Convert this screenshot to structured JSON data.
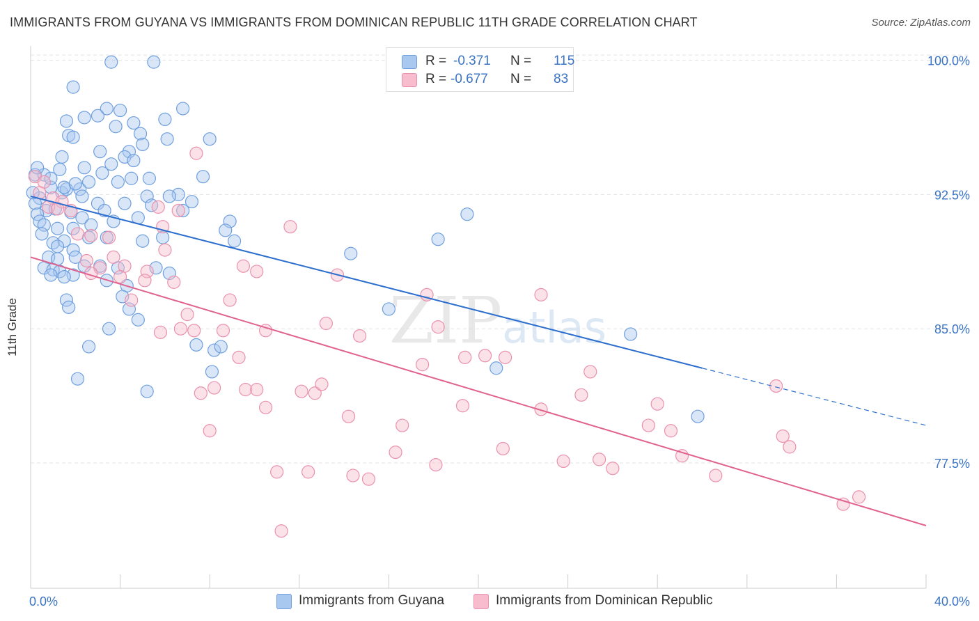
{
  "title": "IMMIGRANTS FROM GUYANA VS IMMIGRANTS FROM DOMINICAN REPUBLIC 11TH GRADE CORRELATION CHART",
  "source": "Source: ZipAtlas.com",
  "watermark": "ZIPatlas",
  "legend": {
    "rows": [
      {
        "r_label": "R =",
        "r_value": "-0.371",
        "n_label": "N =",
        "n_value": "115"
      },
      {
        "r_label": "R =",
        "r_value": "-0.677",
        "n_label": "N =",
        "n_value": "83"
      }
    ]
  },
  "bottom_legend": [
    "Immigrants from Guyana",
    "Immigrants from Dominican Republic"
  ],
  "colors": {
    "blue_fill": "#a9c8f0",
    "blue_stroke": "#6f9fde",
    "blue_line": "#2c6fce",
    "pink_fill": "#f7bccd",
    "pink_stroke": "#ea91ad",
    "pink_line": "#e0628f",
    "tick_text": "#3a74c4",
    "grid": "#e3e3e3"
  },
  "chart_data": {
    "type": "scatter",
    "title": "IMMIGRANTS FROM GUYANA VS IMMIGRANTS FROM DOMINICAN REPUBLIC 11TH GRADE CORRELATION CHART",
    "xlabel": "",
    "ylabel": "11th Grade",
    "xlim": [
      0,
      40
    ],
    "ylim": [
      70.5,
      100.8
    ],
    "x_ticks_labeled": [
      "0.0%",
      "40.0%"
    ],
    "y_ticks": [
      77.5,
      85.0,
      92.5,
      100.0
    ],
    "y_tick_labels": [
      "77.5%",
      "85.0%",
      "92.5%",
      "100.0%"
    ],
    "grid": true,
    "legend_position": "top-center",
    "series": [
      {
        "name": "Immigrants from Guyana",
        "color": "#a9c8f0",
        "R": -0.371,
        "N": 115,
        "trend": {
          "x0": 0,
          "y0": 92.4,
          "x1": 30,
          "y1": 82.8,
          "dash_to_x": 40,
          "dash_to_y": 79.6
        },
        "points": [
          [
            3.6,
            99.9
          ],
          [
            5.5,
            99.9
          ],
          [
            1.9,
            98.5
          ],
          [
            3.4,
            97.3
          ],
          [
            6.8,
            97.3
          ],
          [
            2.4,
            96.8
          ],
          [
            1.6,
            96.6
          ],
          [
            3.0,
            96.9
          ],
          [
            4.0,
            97.2
          ],
          [
            3.8,
            96.3
          ],
          [
            1.7,
            95.8
          ],
          [
            1.9,
            95.7
          ],
          [
            4.9,
            95.9
          ],
          [
            6.1,
            95.6
          ],
          [
            8.0,
            95.6
          ],
          [
            3.1,
            94.9
          ],
          [
            4.4,
            94.9
          ],
          [
            1.4,
            94.6
          ],
          [
            4.2,
            94.6
          ],
          [
            4.6,
            94.4
          ],
          [
            3.6,
            94.2
          ],
          [
            0.2,
            93.6
          ],
          [
            0.6,
            93.6
          ],
          [
            1.3,
            93.9
          ],
          [
            2.4,
            94.0
          ],
          [
            3.2,
            93.7
          ],
          [
            5.3,
            93.4
          ],
          [
            7.7,
            93.5
          ],
          [
            0.9,
            92.9
          ],
          [
            1.4,
            92.6
          ],
          [
            1.6,
            92.8
          ],
          [
            2.2,
            92.8
          ],
          [
            2.3,
            92.4
          ],
          [
            3.9,
            93.2
          ],
          [
            4.5,
            93.4
          ],
          [
            6.6,
            92.5
          ],
          [
            0.4,
            92.3
          ],
          [
            0.2,
            92.0
          ],
          [
            0.7,
            91.6
          ],
          [
            0.3,
            91.4
          ],
          [
            1.1,
            91.7
          ],
          [
            1.8,
            91.5
          ],
          [
            2.3,
            91.2
          ],
          [
            2.7,
            90.8
          ],
          [
            3.0,
            92.0
          ],
          [
            3.3,
            91.6
          ],
          [
            3.7,
            91.0
          ],
          [
            4.2,
            92.0
          ],
          [
            4.8,
            91.2
          ],
          [
            5.2,
            92.4
          ],
          [
            5.4,
            91.9
          ],
          [
            6.2,
            92.4
          ],
          [
            7.2,
            92.1
          ],
          [
            8.9,
            91.0
          ],
          [
            0.4,
            91.0
          ],
          [
            0.6,
            90.8
          ],
          [
            0.5,
            90.3
          ],
          [
            1.2,
            90.6
          ],
          [
            1.9,
            90.6
          ],
          [
            2.6,
            90.1
          ],
          [
            3.4,
            90.1
          ],
          [
            5.0,
            89.9
          ],
          [
            9.1,
            89.9
          ],
          [
            1.0,
            89.8
          ],
          [
            1.5,
            89.9
          ],
          [
            1.9,
            89.4
          ],
          [
            0.8,
            89.0
          ],
          [
            1.2,
            88.9
          ],
          [
            2.0,
            89.0
          ],
          [
            3.1,
            88.5
          ],
          [
            0.6,
            88.4
          ],
          [
            1.0,
            88.3
          ],
          [
            1.3,
            88.2
          ],
          [
            1.9,
            88.0
          ],
          [
            2.4,
            88.5
          ],
          [
            3.9,
            88.4
          ],
          [
            5.6,
            88.4
          ],
          [
            6.2,
            88.1
          ],
          [
            0.9,
            88.0
          ],
          [
            1.5,
            87.9
          ],
          [
            3.4,
            87.7
          ],
          [
            4.3,
            87.4
          ],
          [
            1.6,
            86.6
          ],
          [
            4.1,
            86.8
          ],
          [
            1.7,
            86.2
          ],
          [
            4.4,
            86.1
          ],
          [
            14.3,
            89.2
          ],
          [
            18.2,
            90.0
          ],
          [
            16.0,
            86.1
          ],
          [
            4.8,
            85.5
          ],
          [
            7.4,
            84.1
          ],
          [
            3.5,
            85.0
          ],
          [
            8.2,
            83.8
          ],
          [
            8.5,
            84.0
          ],
          [
            2.6,
            84.0
          ],
          [
            8.1,
            82.6
          ],
          [
            26.8,
            84.7
          ],
          [
            29.8,
            80.1
          ],
          [
            2.1,
            82.2
          ],
          [
            5.2,
            81.5
          ],
          [
            20.8,
            82.8
          ],
          [
            19.5,
            91.4
          ],
          [
            8.7,
            90.5
          ],
          [
            2.6,
            93.2
          ],
          [
            6.8,
            91.6
          ],
          [
            5.9,
            90.1
          ],
          [
            1.2,
            89.6
          ],
          [
            0.3,
            94.0
          ],
          [
            0.1,
            92.6
          ],
          [
            0.9,
            93.4
          ],
          [
            1.5,
            92.9
          ],
          [
            2.0,
            93.1
          ],
          [
            4.6,
            96.5
          ],
          [
            5.0,
            95.3
          ],
          [
            6.0,
            96.7
          ]
        ]
      },
      {
        "name": "Immigrants from Dominican Republic",
        "color": "#f7bccd",
        "R": -0.677,
        "N": 83,
        "trend": {
          "x0": 0,
          "y0": 89.0,
          "x1": 40,
          "y1": 74.0
        },
        "points": [
          [
            0.2,
            93.5
          ],
          [
            0.6,
            93.2
          ],
          [
            0.4,
            92.6
          ],
          [
            1.0,
            92.3
          ],
          [
            1.4,
            92.1
          ],
          [
            1.8,
            91.6
          ],
          [
            0.8,
            91.8
          ],
          [
            1.2,
            91.7
          ],
          [
            7.4,
            94.8
          ],
          [
            5.7,
            91.8
          ],
          [
            6.6,
            91.6
          ],
          [
            2.1,
            90.3
          ],
          [
            2.7,
            90.2
          ],
          [
            3.5,
            90.1
          ],
          [
            5.9,
            90.7
          ],
          [
            11.6,
            90.7
          ],
          [
            6.0,
            89.4
          ],
          [
            3.7,
            89.0
          ],
          [
            2.5,
            88.8
          ],
          [
            4.2,
            88.5
          ],
          [
            5.2,
            88.2
          ],
          [
            3.1,
            88.4
          ],
          [
            2.7,
            88.1
          ],
          [
            9.5,
            88.5
          ],
          [
            10.1,
            88.2
          ],
          [
            13.7,
            88.0
          ],
          [
            4.0,
            87.9
          ],
          [
            5.1,
            87.7
          ],
          [
            6.4,
            87.6
          ],
          [
            4.5,
            86.6
          ],
          [
            8.9,
            86.6
          ],
          [
            7.0,
            85.8
          ],
          [
            13.2,
            85.3
          ],
          [
            17.7,
            86.9
          ],
          [
            22.8,
            86.9
          ],
          [
            6.7,
            85.0
          ],
          [
            5.8,
            84.8
          ],
          [
            7.3,
            84.9
          ],
          [
            8.6,
            84.9
          ],
          [
            10.5,
            84.9
          ],
          [
            14.7,
            84.6
          ],
          [
            18.2,
            85.1
          ],
          [
            19.4,
            83.4
          ],
          [
            20.3,
            83.5
          ],
          [
            21.2,
            83.4
          ],
          [
            9.3,
            83.4
          ],
          [
            17.5,
            83.0
          ],
          [
            25.0,
            82.6
          ],
          [
            8.2,
            81.7
          ],
          [
            7.6,
            81.4
          ],
          [
            9.6,
            81.6
          ],
          [
            10.1,
            81.6
          ],
          [
            12.1,
            81.5
          ],
          [
            12.7,
            81.4
          ],
          [
            13.0,
            81.9
          ],
          [
            24.6,
            81.3
          ],
          [
            33.3,
            81.8
          ],
          [
            19.3,
            80.7
          ],
          [
            22.8,
            80.5
          ],
          [
            28.0,
            80.8
          ],
          [
            10.5,
            80.6
          ],
          [
            14.2,
            80.1
          ],
          [
            16.6,
            79.6
          ],
          [
            8.0,
            79.3
          ],
          [
            27.6,
            79.6
          ],
          [
            28.6,
            79.3
          ],
          [
            33.6,
            79.0
          ],
          [
            33.9,
            78.4
          ],
          [
            16.3,
            78.1
          ],
          [
            21.1,
            78.3
          ],
          [
            29.1,
            77.9
          ],
          [
            18.1,
            77.4
          ],
          [
            23.8,
            77.6
          ],
          [
            25.4,
            77.7
          ],
          [
            26.0,
            77.2
          ],
          [
            11.0,
            77.0
          ],
          [
            12.4,
            77.0
          ],
          [
            14.4,
            76.8
          ],
          [
            15.1,
            76.6
          ],
          [
            30.6,
            76.8
          ],
          [
            36.3,
            75.2
          ],
          [
            37.0,
            75.6
          ],
          [
            11.2,
            73.7
          ]
        ]
      }
    ]
  }
}
